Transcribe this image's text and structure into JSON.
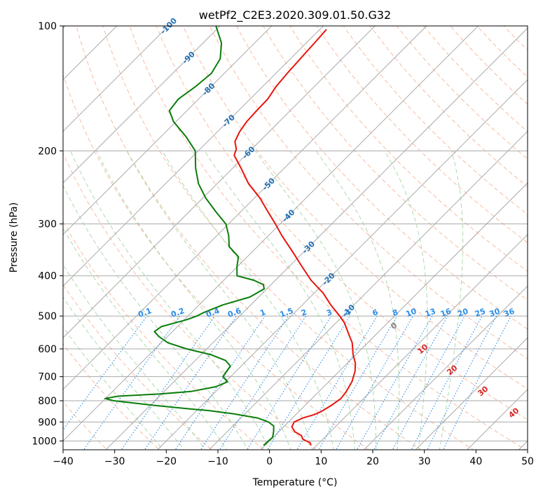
{
  "chart_data": {
    "type": "line",
    "title": "wetPf2_C2E3.2020.309.01.50.G32",
    "xlabel": "Temperature (°C)",
    "ylabel": "Pressure (hPa)",
    "xlim": [
      -40,
      50
    ],
    "ylim": [
      1050,
      100
    ],
    "y_scale": "log",
    "x_ticks": [
      -40,
      -30,
      -20,
      -10,
      0,
      10,
      20,
      30,
      40,
      50
    ],
    "y_ticks": [
      100,
      200,
      300,
      400,
      500,
      600,
      700,
      800,
      900,
      1000
    ],
    "grid": true,
    "colors": {
      "temperature": "#e8140c",
      "dewpoint": "#0a7d0a",
      "isotherm_labels": "#1f6fb4",
      "mixing_ratio": "#2a8ee8",
      "moist_labels": "#d62728",
      "dry_adiabats": "#f4a582",
      "moist_adiabats": "#98d098",
      "grid": "#aaaaaa"
    },
    "isotherm_labels": [
      "-100",
      "-90",
      "-80",
      "-70",
      "-60",
      "-50",
      "-40",
      "-30",
      "-20",
      "-10"
    ],
    "isotherm_label_values": [
      -100,
      -90,
      -80,
      -70,
      -60,
      -50,
      -40,
      -30,
      -20,
      -10
    ],
    "mixing_ratio_labels": [
      "0.1",
      "0.2",
      "0.4",
      "0.6",
      "1",
      "1.5",
      "2",
      "3",
      "4",
      "6",
      "8",
      "10",
      "13",
      "16",
      "20",
      "25",
      "30",
      "36"
    ],
    "moist_adiabat_labels": [
      "0",
      "10",
      "20",
      "30",
      "40"
    ],
    "series": [
      {
        "name": "Temperature",
        "pressure": [
          1025,
          1010,
          990,
          970,
          950,
          925,
          900,
          880,
          865,
          850,
          820,
          790,
          760,
          720,
          680,
          650,
          620,
          580,
          550,
          520,
          500,
          470,
          440,
          410,
          380,
          350,
          320,
          300,
          280,
          260,
          240,
          220,
          205,
          198,
          190,
          180,
          170,
          160,
          150,
          140,
          130,
          120,
          110,
          102
        ],
        "temperature": [
          8.9,
          8.2,
          6.1,
          5.1,
          3.1,
          1.6,
          1.1,
          2.0,
          3.5,
          4.3,
          5.1,
          5.6,
          5.3,
          4.5,
          3.1,
          1.6,
          -0.5,
          -3.0,
          -5.6,
          -8.3,
          -10.6,
          -14.5,
          -18.3,
          -23.1,
          -27.5,
          -32.2,
          -37.4,
          -40.9,
          -44.8,
          -48.9,
          -53.9,
          -58.4,
          -62.2,
          -63.0,
          -64.7,
          -65.7,
          -66.3,
          -66.5,
          -66.6,
          -67.4,
          -67.8,
          -68.1,
          -68.4,
          -68.7
        ]
      },
      {
        "name": "Dewpoint",
        "pressure": [
          1025,
          1000,
          980,
          950,
          920,
          900,
          880,
          860,
          845,
          835,
          820,
          800,
          790,
          780,
          770,
          760,
          740,
          720,
          700,
          680,
          660,
          640,
          620,
          600,
          580,
          560,
          545,
          530,
          520,
          510,
          500,
          490,
          470,
          450,
          430,
          420,
          410,
          400,
          380,
          360,
          340,
          320,
          300,
          280,
          260,
          240,
          220,
          200,
          185,
          170,
          160,
          150,
          140,
          130,
          120,
          110,
          100
        ],
        "temperature": [
          -0.3,
          -0.2,
          -0.1,
          -1.0,
          -2.1,
          -3.9,
          -6.8,
          -12.3,
          -17.6,
          -22.7,
          -29.6,
          -38.0,
          -40.1,
          -38.0,
          -30.2,
          -24.8,
          -20.9,
          -19.6,
          -21.5,
          -21.8,
          -22.1,
          -24.1,
          -28.0,
          -33.9,
          -38.7,
          -41.7,
          -43.5,
          -43.1,
          -41.3,
          -39.5,
          -38.3,
          -37.6,
          -35.4,
          -31.7,
          -30.5,
          -31.5,
          -34.2,
          -38.3,
          -40.1,
          -41.7,
          -45.5,
          -47.7,
          -50.5,
          -54.9,
          -59.4,
          -63.6,
          -67.2,
          -70.6,
          -75.1,
          -80.5,
          -83.4,
          -83.9,
          -83.0,
          -82.5,
          -83.6,
          -86.4,
          -90.8
        ]
      }
    ]
  }
}
